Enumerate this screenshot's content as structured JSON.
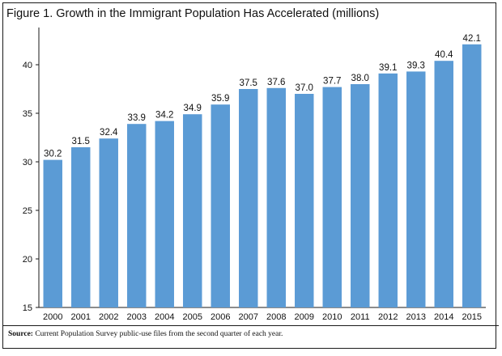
{
  "chart_data": {
    "type": "bar",
    "title": "Figure 1. Growth in the Immigrant Population Has Accelerated (millions)",
    "categories": [
      "2000",
      "2001",
      "2002",
      "2003",
      "2004",
      "2005",
      "2006",
      "2007",
      "2008",
      "2009",
      "2010",
      "2011",
      "2012",
      "2013",
      "2014",
      "2015"
    ],
    "values": [
      30.2,
      31.5,
      32.4,
      33.9,
      34.2,
      34.9,
      35.9,
      37.5,
      37.6,
      37.0,
      37.7,
      38.0,
      39.1,
      39.3,
      40.4,
      42.1
    ],
    "data_labels": [
      "30.2",
      "31.5",
      "32.4",
      "33.9",
      "34.2",
      "34.9",
      "35.9",
      "37.5",
      "37.6",
      "37.0",
      "37.7",
      "38.0",
      "39.1",
      "39.3",
      "40.4",
      "42.1"
    ],
    "ylim": [
      15,
      43.5
    ],
    "yticks": [
      15,
      20,
      25,
      30,
      35,
      40
    ],
    "ytick_labels": [
      "15",
      "20",
      "25",
      "30",
      "35",
      "40"
    ],
    "grid": false,
    "legend": "none",
    "bar_color": "#5b9bd5",
    "source_label": "Source:",
    "source_text": "Current Population Survey public-use files from the second quarter of each year."
  }
}
